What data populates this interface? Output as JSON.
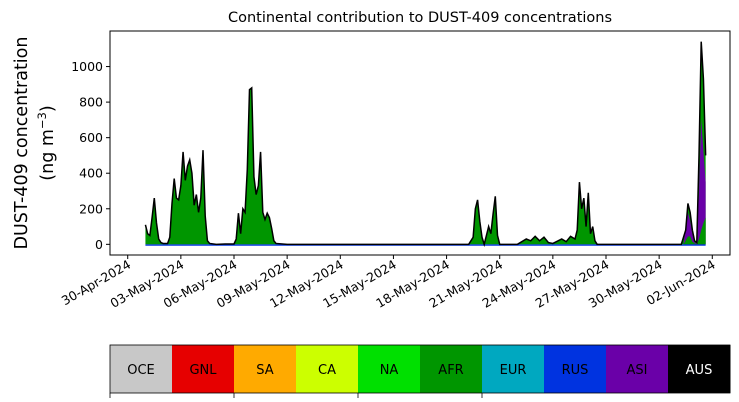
{
  "chart_data": {
    "type": "area",
    "title": "Continental contribution to DUST-409 concentrations",
    "ylabel_line1": "DUST-409 concentration",
    "ylabel_line2_prefix": "(ng m",
    "ylabel_line2_sup": "−3",
    "ylabel_line2_suffix": ")",
    "x_range": [
      "2024-04-29",
      "2024-06-03"
    ],
    "y_range": [
      -60,
      1200
    ],
    "yticks": [
      0,
      200,
      400,
      600,
      800,
      1000
    ],
    "xticks": [
      {
        "date": "2024-04-30",
        "label": "30-Apr-2024"
      },
      {
        "date": "2024-05-03",
        "label": "03-May-2024"
      },
      {
        "date": "2024-05-06",
        "label": "06-May-2024"
      },
      {
        "date": "2024-05-09",
        "label": "09-May-2024"
      },
      {
        "date": "2024-05-12",
        "label": "12-May-2024"
      },
      {
        "date": "2024-05-15",
        "label": "15-May-2024"
      },
      {
        "date": "2024-05-18",
        "label": "18-May-2024"
      },
      {
        "date": "2024-05-21",
        "label": "21-May-2024"
      },
      {
        "date": "2024-05-24",
        "label": "24-May-2024"
      },
      {
        "date": "2024-05-27",
        "label": "27-May-2024"
      },
      {
        "date": "2024-05-30",
        "label": "30-May-2024"
      },
      {
        "date": "2024-06-02",
        "label": "02-Jun-2024"
      }
    ],
    "total_series": [
      [
        "2024-05-01 00:00",
        110
      ],
      [
        "2024-05-01 03:00",
        60
      ],
      [
        "2024-05-01 06:00",
        50
      ],
      [
        "2024-05-01 09:00",
        150
      ],
      [
        "2024-05-01 12:00",
        260
      ],
      [
        "2024-05-01 15:00",
        120
      ],
      [
        "2024-05-01 18:00",
        30
      ],
      [
        "2024-05-01 21:00",
        10
      ],
      [
        "2024-05-02 00:00",
        5
      ],
      [
        "2024-05-02 06:00",
        5
      ],
      [
        "2024-05-02 09:00",
        40
      ],
      [
        "2024-05-02 12:00",
        230
      ],
      [
        "2024-05-02 15:00",
        370
      ],
      [
        "2024-05-02 18:00",
        260
      ],
      [
        "2024-05-02 21:00",
        250
      ],
      [
        "2024-05-03 00:00",
        330
      ],
      [
        "2024-05-03 03:00",
        520
      ],
      [
        "2024-05-03 06:00",
        360
      ],
      [
        "2024-05-03 09:00",
        440
      ],
      [
        "2024-05-03 12:00",
        475
      ],
      [
        "2024-05-03 15:00",
        400
      ],
      [
        "2024-05-03 18:00",
        220
      ],
      [
        "2024-05-03 21:00",
        280
      ],
      [
        "2024-05-04 00:00",
        180
      ],
      [
        "2024-05-04 03:00",
        260
      ],
      [
        "2024-05-04 06:00",
        530
      ],
      [
        "2024-05-04 09:00",
        160
      ],
      [
        "2024-05-04 12:00",
        20
      ],
      [
        "2024-05-04 15:00",
        5
      ],
      [
        "2024-05-05 00:00",
        0
      ],
      [
        "2024-05-05 12:00",
        2
      ],
      [
        "2024-05-06 00:00",
        2
      ],
      [
        "2024-05-06 03:00",
        30
      ],
      [
        "2024-05-06 06:00",
        175
      ],
      [
        "2024-05-06 09:00",
        60
      ],
      [
        "2024-05-06 12:00",
        200
      ],
      [
        "2024-05-06 15:00",
        180
      ],
      [
        "2024-05-06 18:00",
        420
      ],
      [
        "2024-05-06 21:00",
        870
      ],
      [
        "2024-05-07 00:00",
        880
      ],
      [
        "2024-05-07 03:00",
        380
      ],
      [
        "2024-05-07 06:00",
        280
      ],
      [
        "2024-05-07 09:00",
        330
      ],
      [
        "2024-05-07 12:00",
        520
      ],
      [
        "2024-05-07 15:00",
        180
      ],
      [
        "2024-05-07 18:00",
        140
      ],
      [
        "2024-05-07 21:00",
        175
      ],
      [
        "2024-05-08 00:00",
        150
      ],
      [
        "2024-05-08 03:00",
        90
      ],
      [
        "2024-05-08 06:00",
        20
      ],
      [
        "2024-05-08 09:00",
        5
      ],
      [
        "2024-05-09 00:00",
        0
      ],
      [
        "2024-05-12 00:00",
        0
      ],
      [
        "2024-05-15 00:00",
        0
      ],
      [
        "2024-05-18 00:00",
        0
      ],
      [
        "2024-05-19 06:00",
        0
      ],
      [
        "2024-05-19 12:00",
        40
      ],
      [
        "2024-05-19 15:00",
        200
      ],
      [
        "2024-05-19 18:00",
        250
      ],
      [
        "2024-05-19 21:00",
        130
      ],
      [
        "2024-05-20 00:00",
        40
      ],
      [
        "2024-05-20 03:00",
        0
      ],
      [
        "2024-05-20 06:00",
        50
      ],
      [
        "2024-05-20 09:00",
        100
      ],
      [
        "2024-05-20 12:00",
        60
      ],
      [
        "2024-05-20 15:00",
        170
      ],
      [
        "2024-05-20 18:00",
        270
      ],
      [
        "2024-05-20 21:00",
        50
      ],
      [
        "2024-05-21 00:00",
        0
      ],
      [
        "2024-05-22 00:00",
        0
      ],
      [
        "2024-05-22 12:00",
        30
      ],
      [
        "2024-05-22 18:00",
        20
      ],
      [
        "2024-05-23 00:00",
        45
      ],
      [
        "2024-05-23 06:00",
        20
      ],
      [
        "2024-05-23 12:00",
        40
      ],
      [
        "2024-05-23 18:00",
        10
      ],
      [
        "2024-05-24 00:00",
        5
      ],
      [
        "2024-05-24 12:00",
        30
      ],
      [
        "2024-05-24 18:00",
        15
      ],
      [
        "2024-05-25 00:00",
        45
      ],
      [
        "2024-05-25 06:00",
        30
      ],
      [
        "2024-05-25 09:00",
        80
      ],
      [
        "2024-05-25 12:00",
        350
      ],
      [
        "2024-05-25 15:00",
        200
      ],
      [
        "2024-05-25 18:00",
        260
      ],
      [
        "2024-05-25 21:00",
        100
      ],
      [
        "2024-05-26 00:00",
        290
      ],
      [
        "2024-05-26 03:00",
        60
      ],
      [
        "2024-05-26 06:00",
        100
      ],
      [
        "2024-05-26 09:00",
        20
      ],
      [
        "2024-05-26 12:00",
        0
      ],
      [
        "2024-05-27 00:00",
        0
      ],
      [
        "2024-05-30 00:00",
        0
      ],
      [
        "2024-05-31 06:00",
        0
      ],
      [
        "2024-05-31 12:00",
        80
      ],
      [
        "2024-05-31 15:00",
        230
      ],
      [
        "2024-05-31 18:00",
        180
      ],
      [
        "2024-05-31 21:00",
        80
      ],
      [
        "2024-06-01 00:00",
        20
      ],
      [
        "2024-06-01 03:00",
        10
      ],
      [
        "2024-06-01 06:00",
        500
      ],
      [
        "2024-06-01 09:00",
        1140
      ],
      [
        "2024-06-01 12:00",
        930
      ],
      [
        "2024-06-01 15:00",
        500
      ]
    ],
    "asi_series": [
      [
        "2024-05-31 09:00",
        0
      ],
      [
        "2024-05-31 15:00",
        180
      ],
      [
        "2024-05-31 18:00",
        130
      ],
      [
        "2024-05-31 21:00",
        60
      ],
      [
        "2024-06-01 00:00",
        10
      ],
      [
        "2024-06-01 03:00",
        5
      ],
      [
        "2024-06-01 06:00",
        300
      ],
      [
        "2024-06-01 09:00",
        700
      ],
      [
        "2024-06-01 12:00",
        520
      ],
      [
        "2024-06-01 15:00",
        350
      ]
    ],
    "afr_end_series": [
      [
        "2024-05-31 09:00",
        0
      ],
      [
        "2024-05-31 15:00",
        45
      ],
      [
        "2024-05-31 18:00",
        45
      ],
      [
        "2024-05-31 21:00",
        15
      ],
      [
        "2024-06-01 00:00",
        5
      ],
      [
        "2024-06-01 03:00",
        2
      ],
      [
        "2024-06-01 06:00",
        30
      ],
      [
        "2024-06-01 09:00",
        80
      ],
      [
        "2024-06-01 12:00",
        120
      ],
      [
        "2024-06-01 15:00",
        150
      ]
    ],
    "legend": [
      {
        "label": "OCE",
        "color": "#c8c8c8",
        "text_color": "#000000"
      },
      {
        "label": "GNL",
        "color": "#e60000",
        "text_color": "#000000"
      },
      {
        "label": "SA",
        "color": "#ffaa00",
        "text_color": "#000000"
      },
      {
        "label": "CA",
        "color": "#ccff00",
        "text_color": "#000000"
      },
      {
        "label": "NA",
        "color": "#00e000",
        "text_color": "#000000"
      },
      {
        "label": "AFR",
        "color": "#009600",
        "text_color": "#000000"
      },
      {
        "label": "EUR",
        "color": "#00a8c0",
        "text_color": "#000000"
      },
      {
        "label": "RUS",
        "color": "#0033e0",
        "text_color": "#000000"
      },
      {
        "label": "ASI",
        "color": "#6a00a8",
        "text_color": "#000000"
      },
      {
        "label": "AUS",
        "color": "#000000",
        "text_color": "#ffffff"
      }
    ]
  }
}
